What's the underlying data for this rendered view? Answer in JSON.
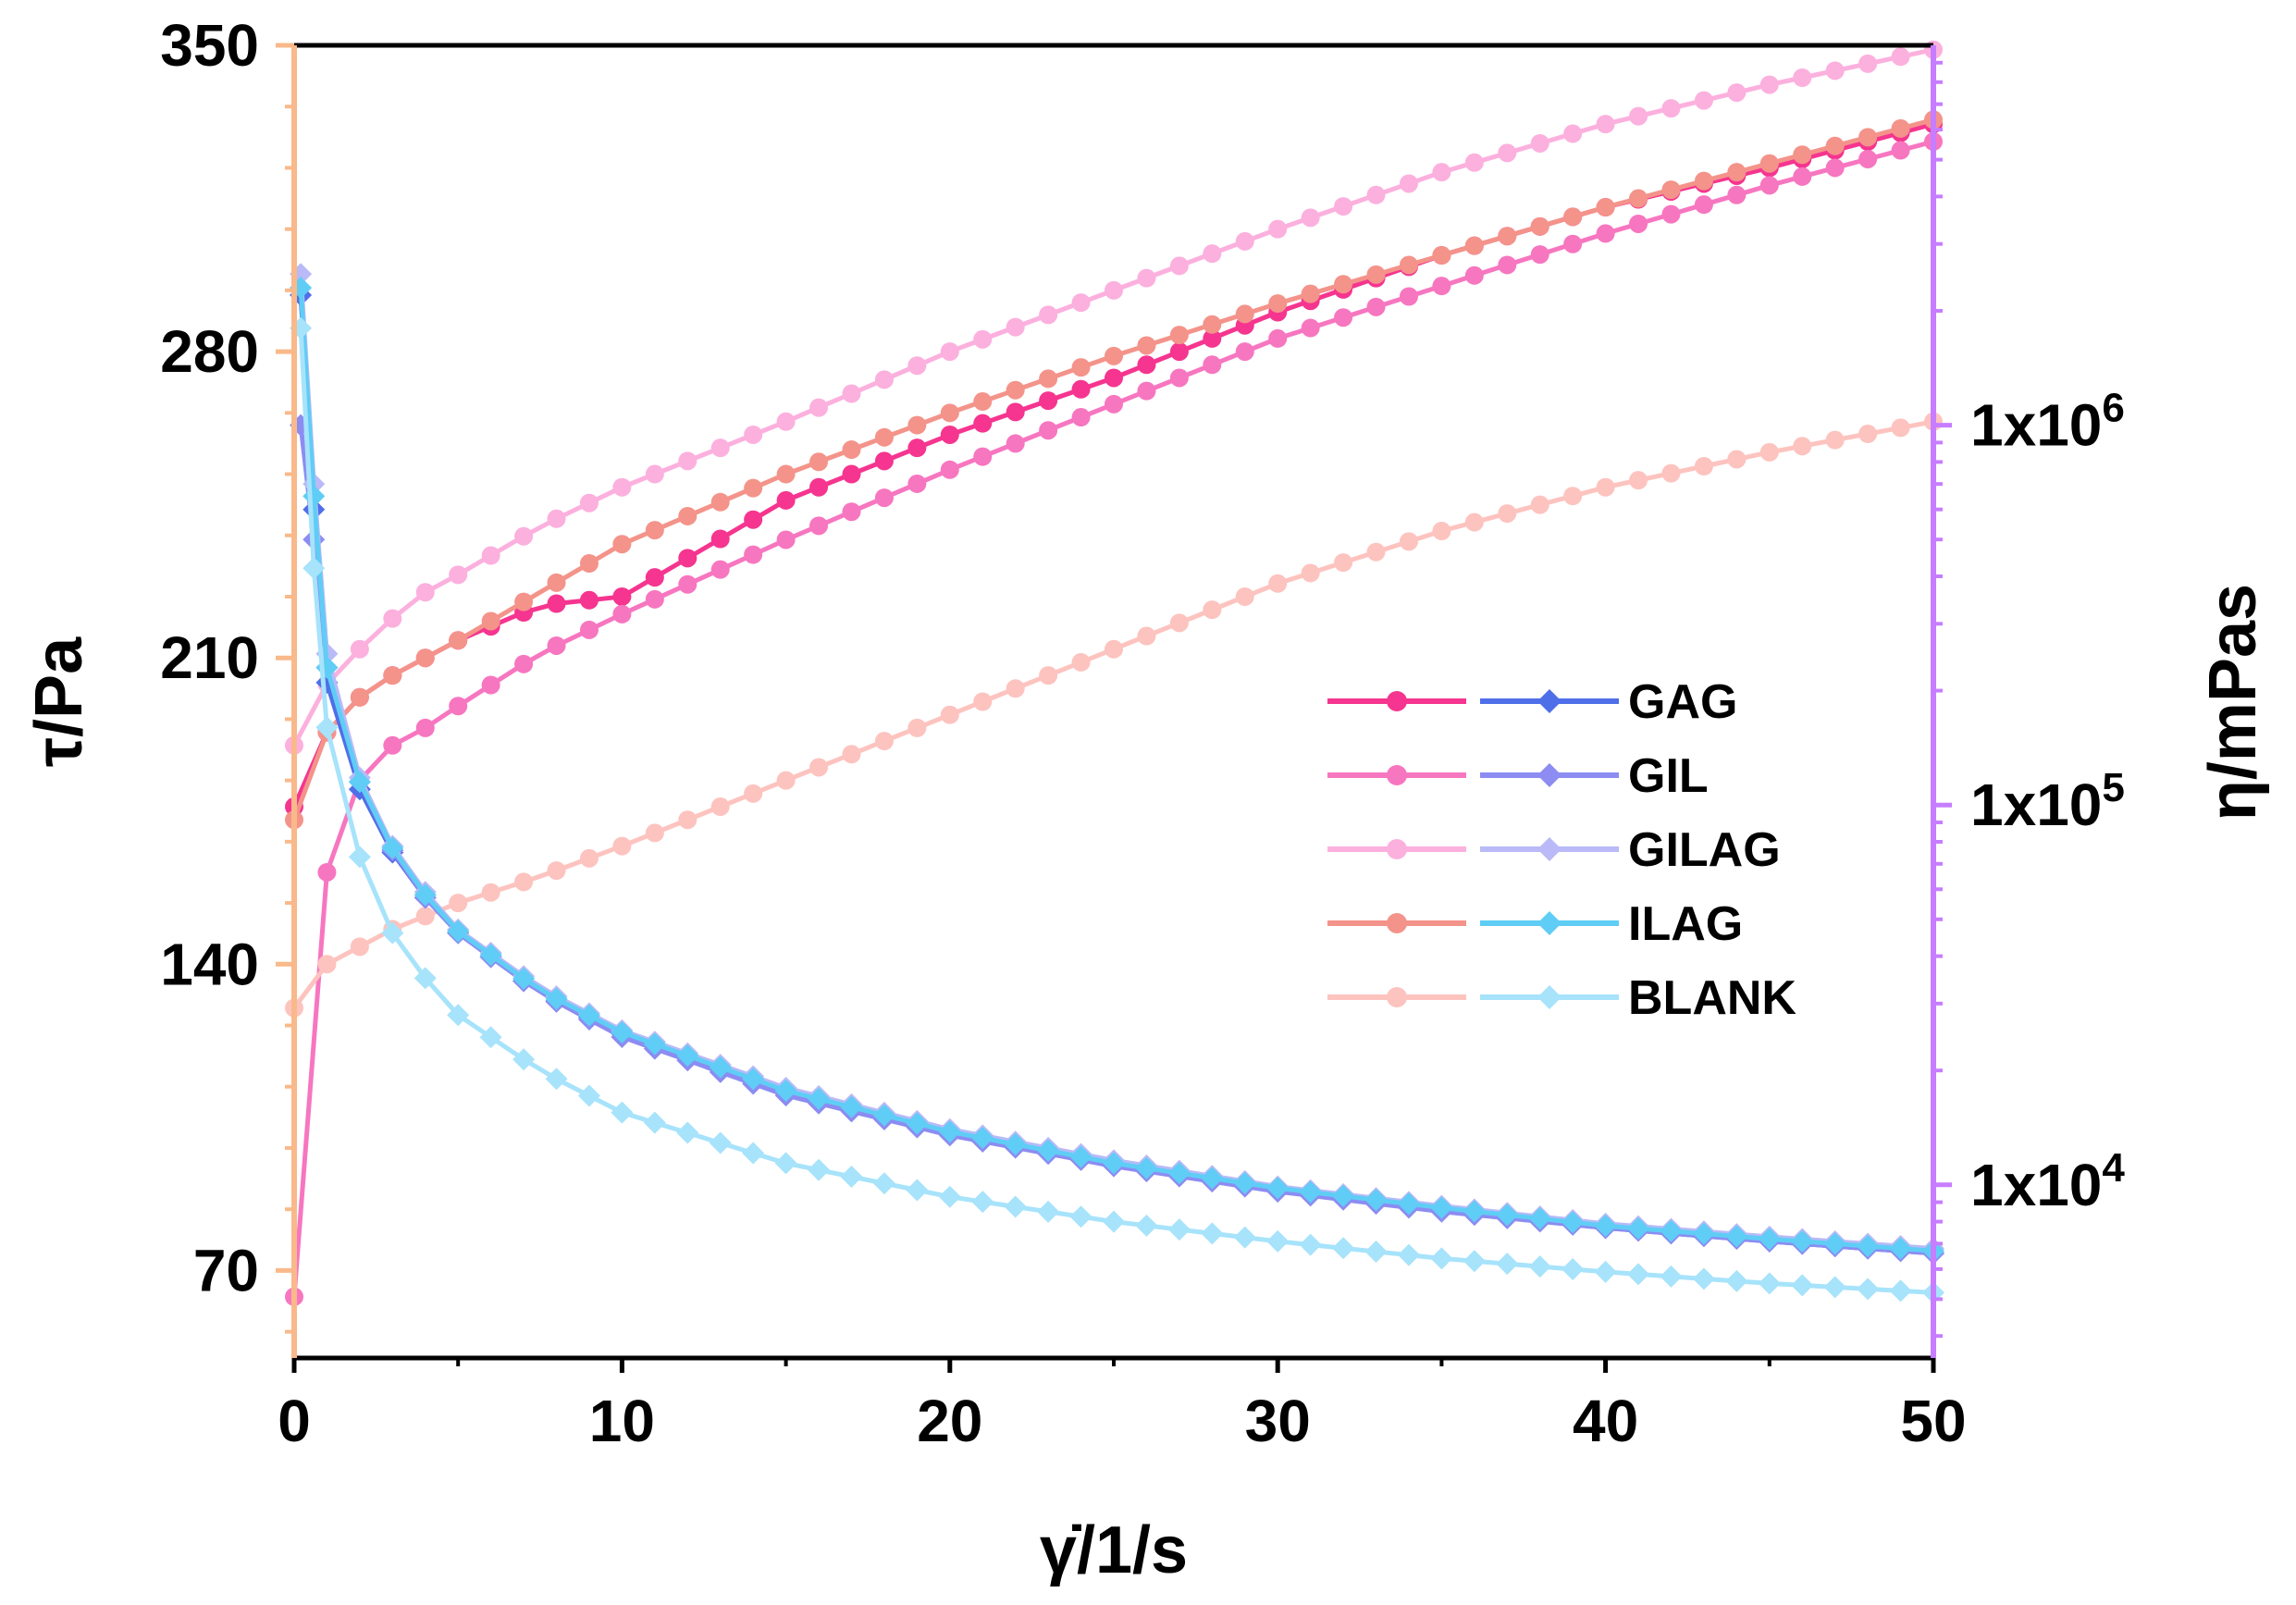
{
  "chart_data": {
    "type": "line",
    "x_axis": {
      "label": "γ̇/1/s",
      "range": [
        0,
        50
      ],
      "ticks": [
        0,
        10,
        20,
        30,
        40,
        50
      ],
      "tick_labels": [
        "0",
        "10",
        "20",
        "30",
        "40",
        "50"
      ]
    },
    "y_left": {
      "label": "τ/Pa",
      "range": [
        50,
        350
      ],
      "ticks": [
        70,
        140,
        210,
        280,
        350
      ],
      "tick_labels": [
        "70",
        "140",
        "210",
        "280",
        "350"
      ],
      "color": "#f9b98a"
    },
    "y_right": {
      "label": "η/mPas",
      "scale": "log",
      "range": [
        3500,
        10000000
      ],
      "ticks": [
        10000,
        100000,
        1000000
      ],
      "tick_labels": [
        {
          "base": "1x10",
          "exp": "4"
        },
        {
          "base": "1x10",
          "exp": "5"
        },
        {
          "base": "1x10",
          "exp": "6"
        }
      ],
      "color": "#c77dff"
    },
    "stress_series": [
      {
        "name": "GAG",
        "color": "#f5358f",
        "x": [
          0,
          1,
          2,
          3,
          4,
          5,
          7.5,
          10,
          15,
          20,
          25,
          30,
          35,
          40,
          45,
          50
        ],
        "values": [
          176,
          193,
          201,
          206,
          210,
          214,
          222,
          224,
          246,
          261,
          274,
          289,
          302,
          313,
          322,
          332
        ]
      },
      {
        "name": "GIL",
        "color": "#f776c0",
        "x": [
          0,
          1,
          2,
          3,
          4,
          5,
          7.5,
          10,
          15,
          20,
          25,
          30,
          35,
          40,
          45,
          50
        ],
        "values": [
          64,
          161,
          182,
          190,
          194,
          199,
          211,
          220,
          237,
          253,
          268,
          283,
          295,
          307,
          318,
          328
        ]
      },
      {
        "name": "GILAG",
        "color": "#fcb0de",
        "x": [
          0,
          1,
          2,
          3,
          4,
          5,
          7.5,
          10,
          15,
          20,
          25,
          30,
          35,
          40,
          45,
          50
        ],
        "values": [
          190,
          204,
          212,
          219,
          225,
          229,
          240,
          249,
          264,
          280,
          294,
          308,
          321,
          332,
          341,
          349
        ]
      },
      {
        "name": "ILAG",
        "color": "#f4938a",
        "x": [
          0,
          1,
          2,
          3,
          4,
          5,
          7.5,
          10,
          15,
          20,
          25,
          30,
          35,
          40,
          45,
          50
        ],
        "values": [
          173,
          193,
          201,
          206,
          210,
          214,
          225,
          236,
          252,
          266,
          279,
          291,
          302,
          313,
          323,
          333
        ]
      },
      {
        "name": "BLANK",
        "color": "#fdc3bf",
        "x": [
          0,
          1,
          2,
          3,
          4,
          5,
          7.5,
          10,
          15,
          20,
          25,
          30,
          35,
          40,
          45,
          50
        ],
        "values": [
          130,
          140,
          144,
          148,
          151,
          154,
          160,
          167,
          182,
          197,
          212,
          227,
          239,
          249,
          257,
          264
        ]
      }
    ],
    "viscosity_series": [
      {
        "name": "GAG",
        "color": "#4f6fe8",
        "x": [
          0.2,
          0.6,
          1,
          1.5,
          2,
          3,
          4,
          5,
          7.5,
          10,
          15,
          20,
          25,
          30,
          35,
          40,
          45,
          50
        ],
        "values": [
          2200000,
          600000,
          210000,
          150000,
          110000,
          75000,
          57000,
          46000,
          32000,
          25000,
          17500,
          13700,
          11300,
          9700,
          8600,
          7700,
          7100,
          6600
        ]
      },
      {
        "name": "GIL",
        "color": "#8c8cf2",
        "x": [
          0.2,
          0.6,
          1,
          1.5,
          2,
          3,
          4,
          5,
          7.5,
          10,
          15,
          20,
          25,
          30,
          35,
          40,
          45,
          50
        ],
        "values": [
          1000000,
          500000,
          230000,
          160000,
          115000,
          76000,
          57000,
          46000,
          32000,
          24500,
          17200,
          13500,
          11200,
          9600,
          8500,
          7700,
          7100,
          6600
        ]
      },
      {
        "name": "GILAG",
        "color": "#b9baf7",
        "x": [
          0.2,
          0.6,
          1,
          1.5,
          2,
          3,
          4,
          5,
          7.5,
          10,
          15,
          20,
          25,
          30,
          35,
          40,
          45,
          50
        ],
        "values": [
          2500000,
          700000,
          250000,
          160000,
          118000,
          78000,
          59000,
          47000,
          33000,
          25500,
          18000,
          14000,
          11600,
          9900,
          8800,
          7900,
          7300,
          6800
        ]
      },
      {
        "name": "ILAG",
        "color": "#5fcdf5",
        "x": [
          0.2,
          0.6,
          1,
          1.5,
          2,
          3,
          4,
          5,
          7.5,
          10,
          15,
          20,
          25,
          30,
          35,
          40,
          45,
          50
        ],
        "values": [
          2300000,
          650000,
          230000,
          155000,
          115000,
          77000,
          58000,
          46500,
          32500,
          25200,
          17700,
          13800,
          11400,
          9800,
          8700,
          7800,
          7200,
          6700
        ]
      },
      {
        "name": "BLANK",
        "color": "#a7e3fb",
        "x": [
          0.2,
          0.6,
          1,
          1.5,
          2,
          3,
          4,
          5,
          7.5,
          10,
          15,
          20,
          25,
          30,
          35,
          40,
          45,
          50
        ],
        "values": [
          1800000,
          420000,
          160000,
          100000,
          73000,
          46000,
          35000,
          28000,
          20000,
          15500,
          11400,
          9300,
          8000,
          7100,
          6400,
          5900,
          5500,
          5200
        ]
      }
    ],
    "legend": {
      "position": "center-right",
      "entries": [
        "GAG",
        "GIL",
        "GILAG",
        "ILAG",
        "BLANK"
      ]
    }
  }
}
